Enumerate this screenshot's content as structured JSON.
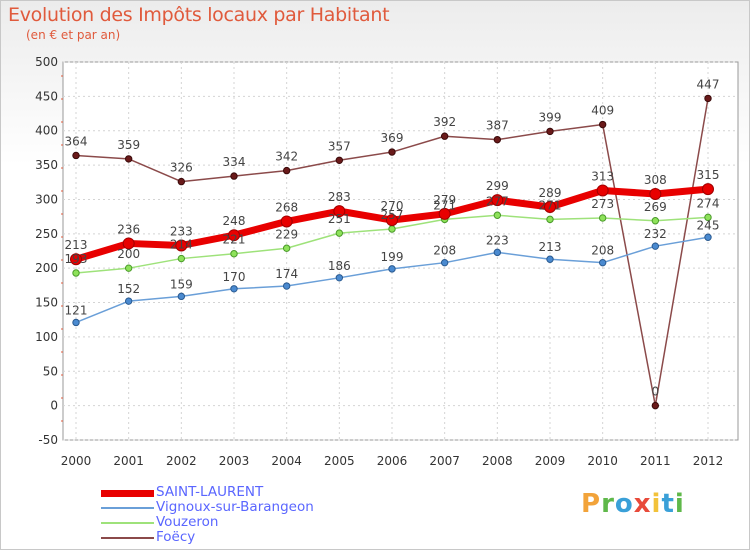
{
  "title": "Evolution des Impôts locaux par Habitant",
  "subtitle": "(en € et par an)",
  "brand": {
    "letters": [
      "P",
      "r",
      "o",
      "x",
      "i",
      "t",
      "i"
    ],
    "colors": [
      "#f2a33a",
      "#5fb84a",
      "#3aa0d8",
      "#e84a3a",
      "#f2c23a",
      "#3aa0d8",
      "#5fb84a"
    ]
  },
  "chart_data": {
    "type": "line",
    "title": "Evolution des Impôts locaux par Habitant",
    "subtitle": "(en € et par an)",
    "x": [
      "2000",
      "2001",
      "2002",
      "2003",
      "2004",
      "2005",
      "2006",
      "2007",
      "2008",
      "2009",
      "2010",
      "2011",
      "2012"
    ],
    "ylim": [
      -50,
      500
    ],
    "yticks": [
      "-50",
      "0",
      "50",
      "100",
      "150",
      "200",
      "250",
      "300",
      "350",
      "400",
      "450",
      "500"
    ],
    "grid": true,
    "legend_position": "bottom-left",
    "series": [
      {
        "name": "SAINT-LAURENT",
        "color": "#e80000",
        "values": [
          213,
          236,
          233,
          248,
          268,
          283,
          270,
          279,
          299,
          289,
          313,
          308,
          315
        ],
        "labels": [
          "213",
          "236",
          "233",
          "248",
          "268",
          "283",
          "270",
          "279",
          "299",
          "289",
          "313",
          "308",
          "315"
        ]
      },
      {
        "name": "Vignoux-sur-Barangeon",
        "color": "#6a9fd8",
        "values": [
          121,
          152,
          159,
          170,
          174,
          186,
          199,
          208,
          223,
          213,
          208,
          232,
          245
        ],
        "labels": [
          "121",
          "152",
          "159",
          "170",
          "174",
          "186",
          "199",
          "208",
          "223",
          "213",
          "208",
          "232",
          "245"
        ]
      },
      {
        "name": "Vouzeron",
        "color": "#9ee27a",
        "values": [
          193,
          200,
          214,
          221,
          229,
          251,
          257,
          271,
          277,
          271,
          273,
          269,
          274
        ],
        "labels": [
          "193",
          "200",
          "214",
          "221",
          "229",
          "251",
          "257",
          "271",
          "277",
          "271",
          "273",
          "269",
          "274"
        ]
      },
      {
        "name": "Foëcy",
        "color": "#8b4a4a",
        "values": [
          364,
          359,
          326,
          334,
          342,
          357,
          369,
          392,
          387,
          399,
          409,
          0,
          447
        ],
        "labels": [
          "364",
          "359",
          "326",
          "334",
          "342",
          "357",
          "369",
          "392",
          "387",
          "399",
          "409",
          "0",
          "447"
        ]
      }
    ]
  }
}
